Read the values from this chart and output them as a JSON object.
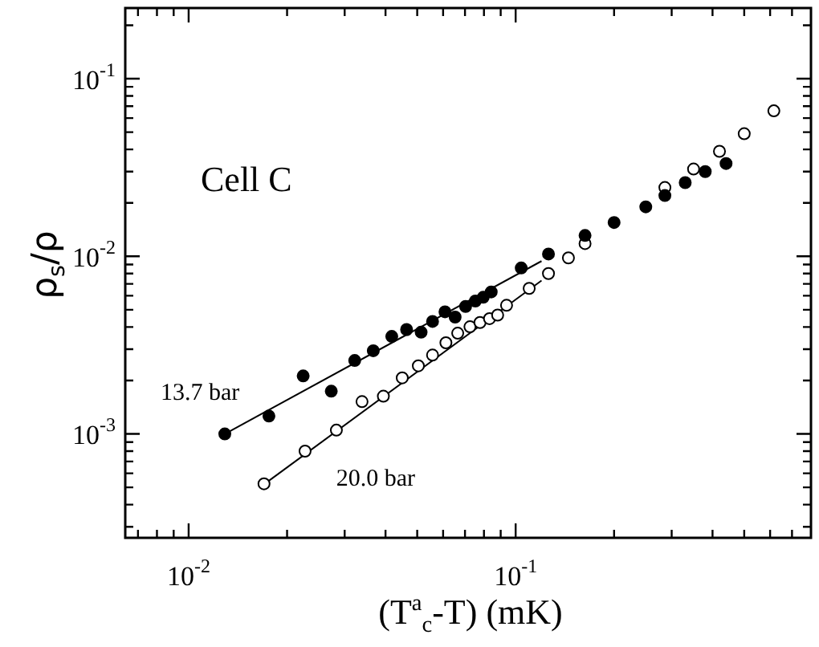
{
  "chart_data": {
    "type": "scatter",
    "log": "xy",
    "legend": false,
    "marker": "circle",
    "xlabel": "(T$^{a}$$_{c}$-T) (mK)",
    "ylabel": "ρ$_{s}$/ρ",
    "annotations": [
      "Cell C"
    ],
    "xlim": [
      0.0064,
      0.8
    ],
    "ylim": [
      0.00026,
      0.25
    ],
    "xticks": [
      {
        "value": 0.007,
        "label": null
      },
      {
        "value": 0.008,
        "label": null
      },
      {
        "value": 0.009,
        "label": null
      },
      {
        "value": 0.01,
        "label": "10$^{-2}$"
      },
      {
        "value": 0.02,
        "label": null
      },
      {
        "value": 0.03,
        "label": null
      },
      {
        "value": 0.04,
        "label": null
      },
      {
        "value": 0.05,
        "label": null
      },
      {
        "value": 0.06,
        "label": null
      },
      {
        "value": 0.07,
        "label": null
      },
      {
        "value": 0.08,
        "label": null
      },
      {
        "value": 0.09,
        "label": null
      },
      {
        "value": 0.1,
        "label": "10$^{-1}$"
      },
      {
        "value": 0.2,
        "label": null
      },
      {
        "value": 0.3,
        "label": null
      },
      {
        "value": 0.4,
        "label": null
      },
      {
        "value": 0.5,
        "label": null
      },
      {
        "value": 0.6,
        "label": null
      },
      {
        "value": 0.7,
        "label": null
      }
    ],
    "yticks": [
      {
        "value": 0.0003,
        "label": null
      },
      {
        "value": 0.0004,
        "label": null
      },
      {
        "value": 0.0005,
        "label": null
      },
      {
        "value": 0.0006,
        "label": null
      },
      {
        "value": 0.0007,
        "label": null
      },
      {
        "value": 0.0008,
        "label": null
      },
      {
        "value": 0.0009,
        "label": null
      },
      {
        "value": 0.001,
        "label": "10$^{-3}$"
      },
      {
        "value": 0.002,
        "label": null
      },
      {
        "value": 0.003,
        "label": null
      },
      {
        "value": 0.004,
        "label": null
      },
      {
        "value": 0.005,
        "label": null
      },
      {
        "value": 0.006,
        "label": null
      },
      {
        "value": 0.007,
        "label": null
      },
      {
        "value": 0.008,
        "label": null
      },
      {
        "value": 0.009,
        "label": null
      },
      {
        "value": 0.01,
        "label": "10$^{-2}$"
      },
      {
        "value": 0.02,
        "label": null
      },
      {
        "value": 0.03,
        "label": null
      },
      {
        "value": 0.04,
        "label": null
      },
      {
        "value": 0.05,
        "label": null
      },
      {
        "value": 0.06,
        "label": null
      },
      {
        "value": 0.07,
        "label": null
      },
      {
        "value": 0.08,
        "label": null
      },
      {
        "value": 0.09,
        "label": null
      },
      {
        "value": 0.1,
        "label": "10$^{-1}$"
      },
      {
        "value": 0.2,
        "label": null
      }
    ],
    "series": [
      {
        "name": "13.7 bar",
        "color": "#000000",
        "x": [
          0.0129,
          0.0176,
          0.0224,
          0.0273,
          0.0322,
          0.0367,
          0.0418,
          0.0464,
          0.0514,
          0.0557,
          0.0608,
          0.0653,
          0.0703,
          0.0753,
          0.0796,
          0.0842,
          0.104,
          0.126,
          0.163,
          0.2,
          0.25,
          0.286,
          0.33,
          0.38,
          0.44
        ],
        "values": [
          0.001,
          0.00126,
          0.00212,
          0.00174,
          0.00259,
          0.00294,
          0.00354,
          0.00387,
          0.00374,
          0.0043,
          0.00487,
          0.00455,
          0.00522,
          0.0056,
          0.00588,
          0.0063,
          0.0086,
          0.0103,
          0.0131,
          0.0155,
          0.019,
          0.022,
          0.026,
          0.03,
          0.0333
        ]
      },
      {
        "name": "20.0 bar",
        "color": "#000000",
        "x": [
          0.017,
          0.0227,
          0.0283,
          0.0339,
          0.0394,
          0.045,
          0.0504,
          0.0557,
          0.0612,
          0.0665,
          0.0725,
          0.0778,
          0.0832,
          0.0881,
          0.0938,
          0.11,
          0.126,
          0.145,
          0.163,
          0.2,
          0.25,
          0.286,
          0.35,
          0.42,
          0.5,
          0.616
        ],
        "values": [
          0.000524,
          0.0008,
          0.00105,
          0.00152,
          0.00163,
          0.00207,
          0.00242,
          0.00278,
          0.00326,
          0.00369,
          0.00401,
          0.00424,
          0.00446,
          0.00467,
          0.0053,
          0.0066,
          0.008,
          0.0098,
          0.0118,
          null,
          null,
          0.0244,
          0.031,
          0.039,
          0.049,
          0.0659
        ]
      },
      {
        "type": "line",
        "color": "#000000",
        "marker": "none",
        "x": [
          0.0129,
          0.12
        ],
        "values": [
          0.001,
          0.0094
        ]
      },
      {
        "type": "line",
        "color": "#000000",
        "marker": "none",
        "x": [
          0.017,
          0.12
        ],
        "values": [
          0.00052,
          0.0073
        ]
      }
    ]
  }
}
